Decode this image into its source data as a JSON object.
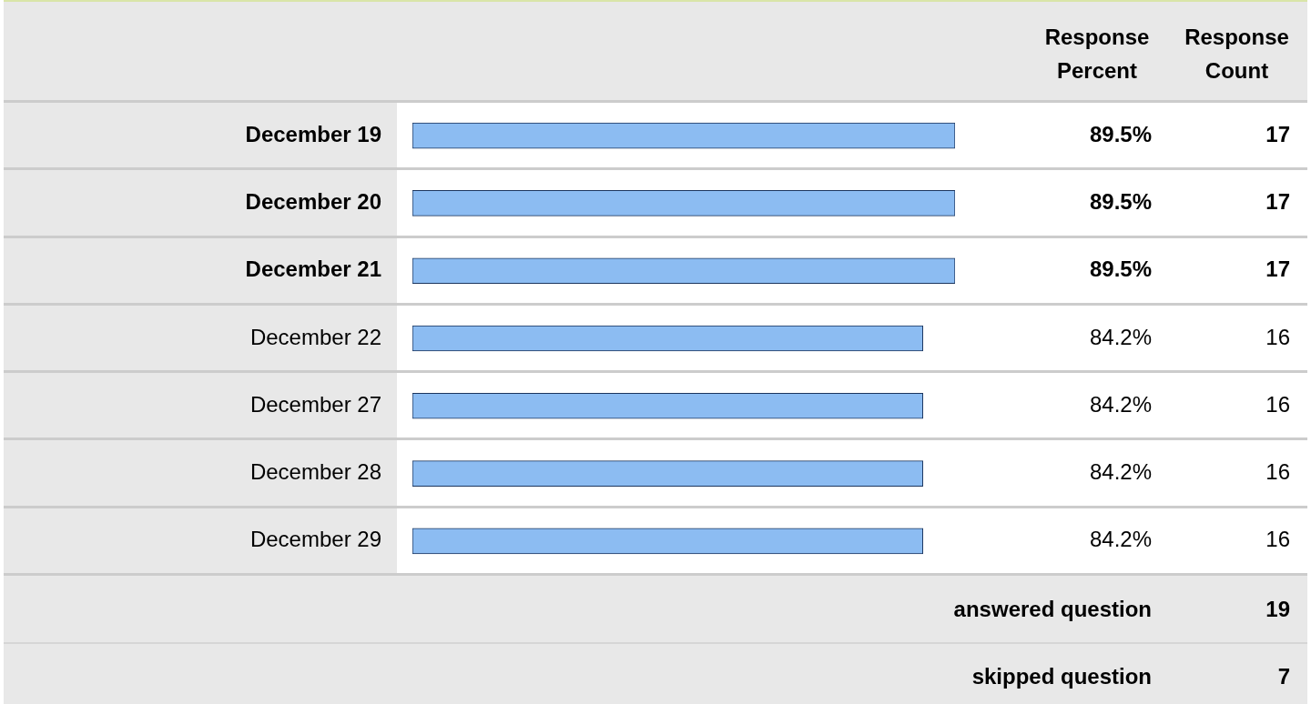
{
  "chart_data": {
    "type": "bar",
    "orientation": "horizontal",
    "categories": [
      "December 19",
      "December 20",
      "December 21",
      "December 22",
      "December 27",
      "December 28",
      "December 29"
    ],
    "values": [
      89.5,
      89.5,
      89.5,
      84.2,
      84.2,
      84.2,
      84.2
    ],
    "value_labels": [
      "89.5%",
      "89.5%",
      "89.5%",
      "84.2%",
      "84.2%",
      "84.2%",
      "84.2%"
    ],
    "color": "#8cbcf2",
    "tick_labels": "y",
    "annotations": [
      "Response Percent",
      "Response Count",
      "17",
      "17",
      "17",
      "16",
      "16",
      "16",
      "16",
      "answered question",
      "19",
      "skipped question",
      "7"
    ]
  }
}
